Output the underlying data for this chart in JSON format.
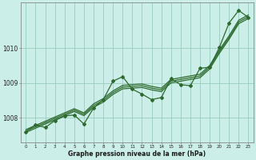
{
  "xlabel": "Graphe pression niveau de la mer (hPa)",
  "bg_color": "#cceee8",
  "grid_color": "#99ccbb",
  "line_color": "#2d6a2d",
  "x_ticks": [
    0,
    1,
    2,
    3,
    4,
    5,
    6,
    7,
    8,
    9,
    10,
    11,
    12,
    13,
    14,
    15,
    16,
    17,
    18,
    19,
    20,
    21,
    22,
    23
  ],
  "ylim": [
    1007.3,
    1011.3
  ],
  "yticks": [
    1008,
    1009,
    1010
  ],
  "line_smooth1": [
    1007.62,
    1007.74,
    1007.86,
    1007.98,
    1008.1,
    1008.22,
    1008.1,
    1008.35,
    1008.5,
    1008.72,
    1008.88,
    1008.9,
    1008.92,
    1008.85,
    1008.8,
    1009.05,
    1009.1,
    1009.15,
    1009.2,
    1009.45,
    1009.9,
    1010.3,
    1010.75,
    1010.9
  ],
  "line_smooth2": [
    1007.58,
    1007.7,
    1007.82,
    1007.94,
    1008.06,
    1008.18,
    1008.06,
    1008.3,
    1008.45,
    1008.67,
    1008.83,
    1008.85,
    1008.87,
    1008.8,
    1008.75,
    1009.0,
    1009.05,
    1009.1,
    1009.15,
    1009.4,
    1009.85,
    1010.25,
    1010.7,
    1010.85
  ],
  "line_smooth3": [
    1007.66,
    1007.78,
    1007.9,
    1008.02,
    1008.14,
    1008.26,
    1008.14,
    1008.4,
    1008.55,
    1008.77,
    1008.93,
    1008.95,
    1008.97,
    1008.9,
    1008.85,
    1009.1,
    1009.15,
    1009.2,
    1009.25,
    1009.5,
    1009.95,
    1010.35,
    1010.8,
    1010.95
  ],
  "line_jagged": [
    1007.6,
    1007.8,
    1007.72,
    1007.92,
    1008.05,
    1008.08,
    1007.82,
    1008.28,
    1008.52,
    1009.05,
    1009.18,
    1008.82,
    1008.68,
    1008.52,
    1008.58,
    1009.12,
    1008.95,
    1008.92,
    1009.42,
    1009.45,
    1010.02,
    1010.72,
    1011.08,
    1010.88
  ]
}
